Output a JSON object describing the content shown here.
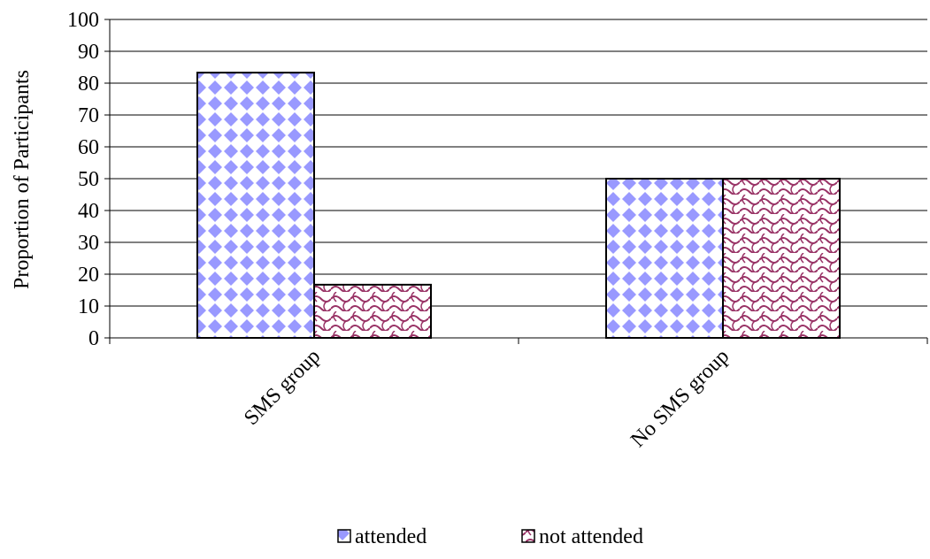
{
  "chart_data": {
    "type": "bar",
    "title": "",
    "xlabel": "",
    "ylabel": "Proportion of Participants",
    "ylim": [
      0,
      100
    ],
    "yticks": [
      0,
      10,
      20,
      30,
      40,
      50,
      60,
      70,
      80,
      90,
      100
    ],
    "grid": true,
    "legend_position": "bottom",
    "categories": [
      "SMS group",
      "No SMS group"
    ],
    "series": [
      {
        "name": "attended",
        "values": [
          83.3,
          50
        ],
        "color": "#9999ff",
        "pattern": "diamond"
      },
      {
        "name": "not attended",
        "values": [
          16.7,
          50
        ],
        "color": "#993366",
        "pattern": "wave"
      }
    ]
  }
}
